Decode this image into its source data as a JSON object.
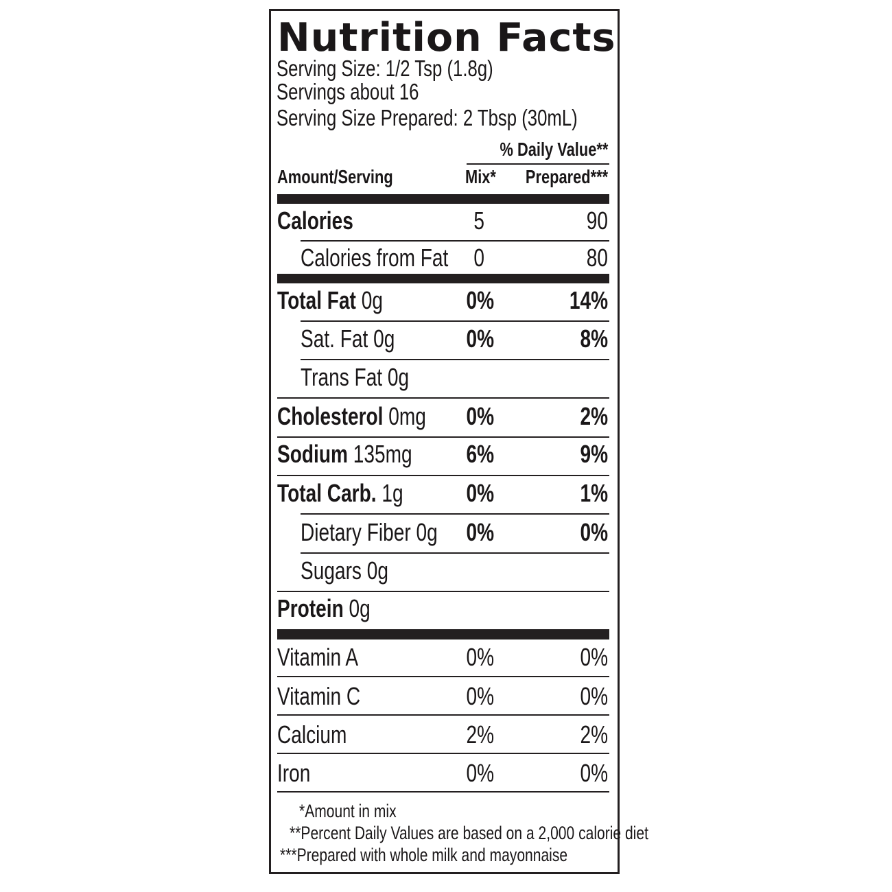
{
  "title": "Nutrition Facts",
  "serving_size": "Serving Size: 1/2 Tsp (1.8g)",
  "servings": "Servings about 16",
  "serving_size_prepared": "Serving Size Prepared: 2 Tbsp (30mL)",
  "header": {
    "daily_value": "% Daily Value**",
    "amount_serving": "Amount/Serving",
    "mix": "Mix*",
    "prepared": "Prepared***"
  },
  "rows": [
    {
      "name": "Calories",
      "amount": "",
      "mix": "5",
      "prepared": "90",
      "bold": true,
      "indent": false,
      "bold_values": false
    },
    {
      "name": "Calories from Fat",
      "amount": "",
      "mix": "0",
      "prepared": "80",
      "bold": false,
      "indent": true,
      "bold_values": false
    },
    {
      "name": "Total Fat",
      "amount": "0g",
      "mix": "0%",
      "prepared": "14%",
      "bold": true,
      "indent": false,
      "bold_values": true
    },
    {
      "name": "Sat. Fat",
      "amount": "0g",
      "mix": "0%",
      "prepared": "8%",
      "bold": false,
      "indent": true,
      "bold_values": true
    },
    {
      "name": "Trans Fat",
      "amount": "0g",
      "mix": "",
      "prepared": "",
      "bold": false,
      "indent": true,
      "bold_values": true
    },
    {
      "name": "Cholesterol",
      "amount": "0mg",
      "mix": "0%",
      "prepared": "2%",
      "bold": true,
      "indent": false,
      "bold_values": true
    },
    {
      "name": "Sodium",
      "amount": "135mg",
      "mix": "6%",
      "prepared": "9%",
      "bold": true,
      "indent": false,
      "bold_values": true
    },
    {
      "name": "Total Carb.",
      "amount": "1g",
      "mix": "0%",
      "prepared": "1%",
      "bold": true,
      "indent": false,
      "bold_values": true
    },
    {
      "name": "Dietary Fiber",
      "amount": "0g",
      "mix": "0%",
      "prepared": "0%",
      "bold": false,
      "indent": true,
      "bold_values": true
    },
    {
      "name": "Sugars",
      "amount": "0g",
      "mix": "",
      "prepared": "",
      "bold": false,
      "indent": true,
      "bold_values": true
    },
    {
      "name": "Protein",
      "amount": "0g",
      "mix": "",
      "prepared": "",
      "bold": true,
      "indent": false,
      "bold_values": true
    },
    {
      "name": "Vitamin A",
      "amount": "",
      "mix": "0%",
      "prepared": "0%",
      "bold": false,
      "indent": false,
      "bold_values": false
    },
    {
      "name": "Vitamin C",
      "amount": "",
      "mix": "0%",
      "prepared": "0%",
      "bold": false,
      "indent": false,
      "bold_values": false
    },
    {
      "name": "Calcium",
      "amount": "",
      "mix": "2%",
      "prepared": "2%",
      "bold": false,
      "indent": false,
      "bold_values": false
    },
    {
      "name": "Iron",
      "amount": "",
      "mix": "0%",
      "prepared": "0%",
      "bold": false,
      "indent": false,
      "bold_values": false
    }
  ],
  "footnotes": [
    {
      "mark": "*",
      "text": "Amount in mix"
    },
    {
      "mark": "**",
      "text": "Percent Daily Values are based on a 2,000 calorie diet"
    },
    {
      "mark": "***",
      "text": "Prepared with whole milk and mayonnaise"
    }
  ],
  "colors": {
    "ink": "#231f20",
    "background": "#ffffff"
  }
}
